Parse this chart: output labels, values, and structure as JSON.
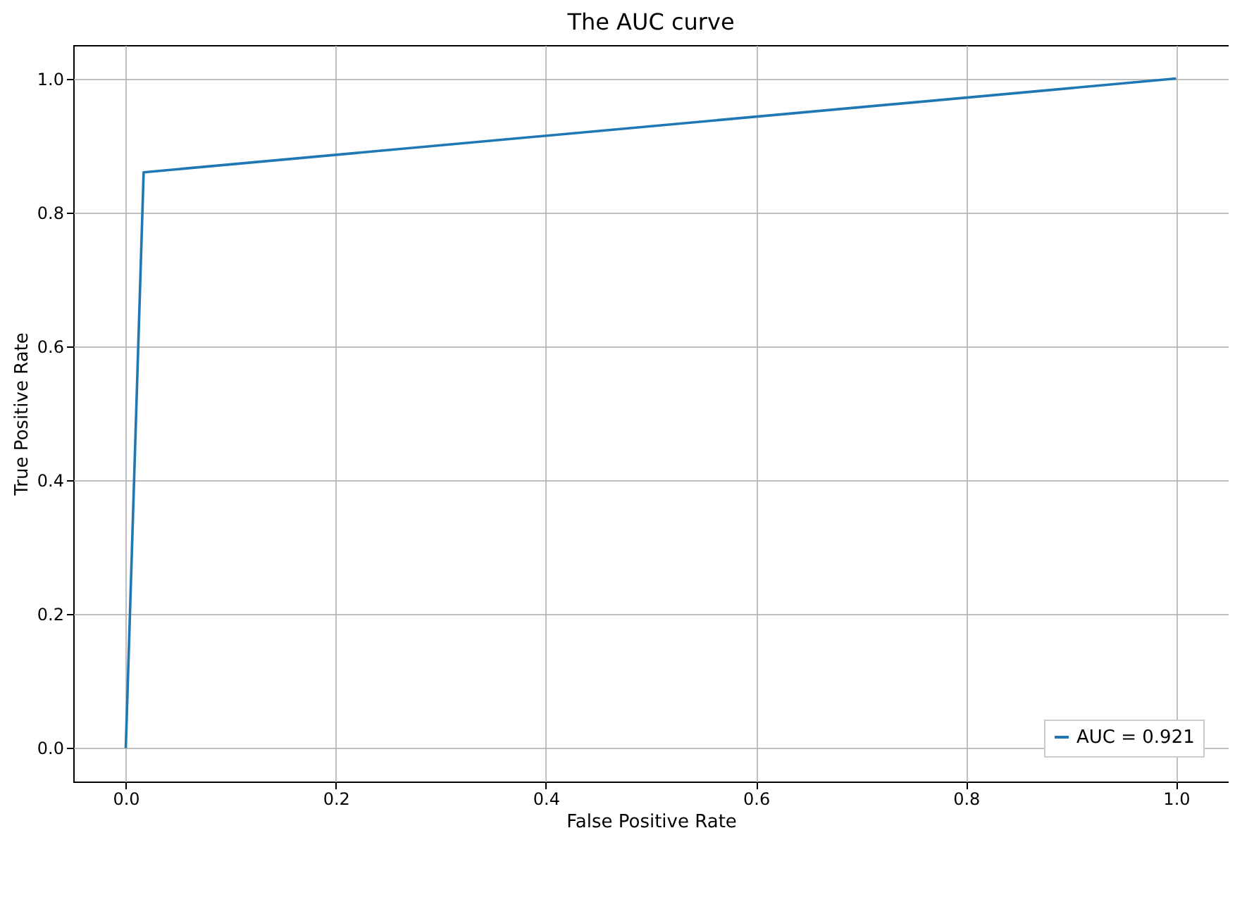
{
  "chart_data": {
    "type": "line",
    "title": "The AUC curve",
    "xlabel": "False Positive Rate",
    "ylabel": "True Positive Rate",
    "x": [
      0,
      0.017,
      1
    ],
    "series": [
      {
        "name": "AUC = 0.921",
        "color": "#1f77b4",
        "values": [
          0,
          0.86,
          1
        ]
      }
    ],
    "xlim": [
      -0.05,
      1.05
    ],
    "ylim": [
      -0.05,
      1.05
    ],
    "xticks": [
      {
        "value": 0,
        "label": "0.0"
      },
      {
        "value": 0.2,
        "label": "0.2"
      },
      {
        "value": 0.4,
        "label": "0.4"
      },
      {
        "value": 0.6,
        "label": "0.6"
      },
      {
        "value": 0.8,
        "label": "0.8"
      },
      {
        "value": 1,
        "label": "1.0"
      }
    ],
    "yticks": [
      {
        "value": 0,
        "label": "0.0"
      },
      {
        "value": 0.2,
        "label": "0.2"
      },
      {
        "value": 0.4,
        "label": "0.4"
      },
      {
        "value": 0.6,
        "label": "0.6"
      },
      {
        "value": 0.8,
        "label": "0.8"
      },
      {
        "value": 1,
        "label": "1.0"
      }
    ],
    "grid": true,
    "legend": "bottom right",
    "line_style": "solid"
  }
}
